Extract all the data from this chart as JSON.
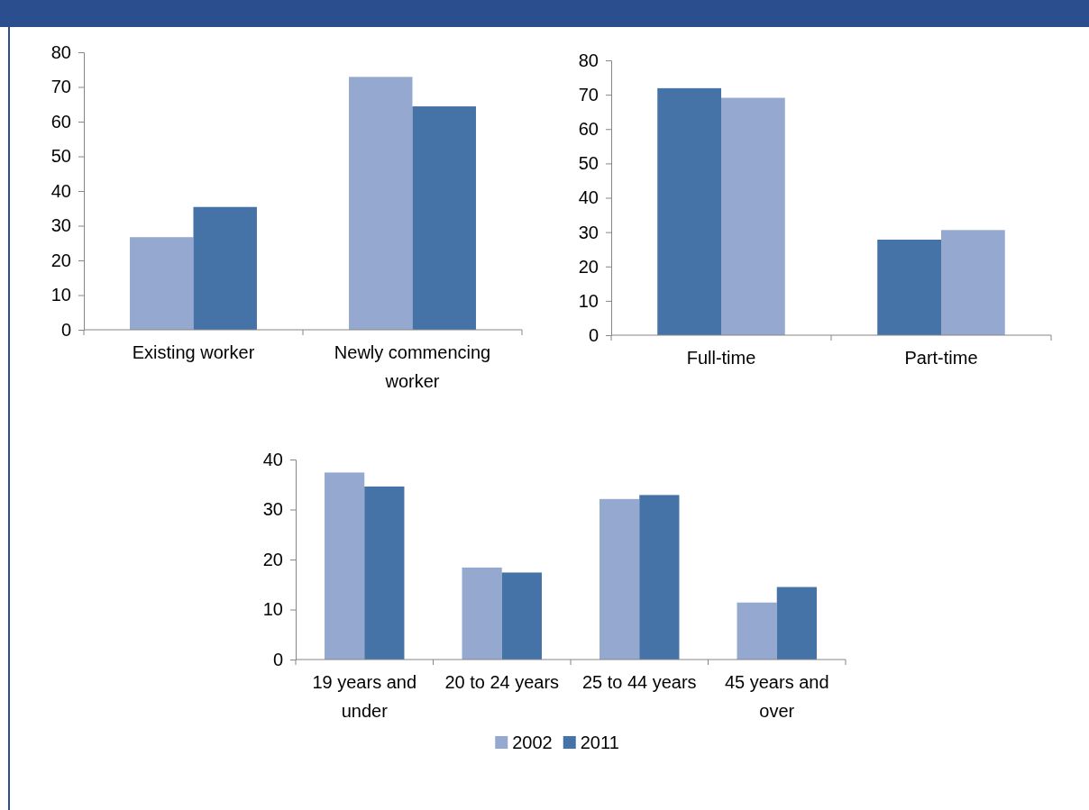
{
  "chart_data": [
    {
      "type": "bar",
      "categories": [
        "Existing worker",
        "Newly commencing worker"
      ],
      "series": [
        {
          "color": "#95a9d0",
          "values": [
            26.7,
            72.9
          ]
        },
        {
          "color": "#4573a7",
          "values": [
            35.4,
            64.4
          ]
        }
      ],
      "ylim": [
        0,
        80
      ],
      "yticks": [
        0,
        10,
        20,
        30,
        40,
        50,
        60,
        70,
        80
      ],
      "grid": false,
      "legend": false
    },
    {
      "type": "bar",
      "categories": [
        "Full-time",
        "Part-time"
      ],
      "series": [
        {
          "color": "#4573a7",
          "values": [
            71.9,
            27.8
          ]
        },
        {
          "color": "#95a9d0",
          "values": [
            69.1,
            30.6
          ]
        }
      ],
      "ylim": [
        0,
        80
      ],
      "yticks": [
        0,
        10,
        20,
        30,
        40,
        50,
        60,
        70,
        80
      ],
      "grid": false,
      "legend": false
    },
    {
      "type": "bar",
      "categories": [
        "19 years and under",
        "20 to 24 years",
        "25 to 44 years",
        "45 years and over"
      ],
      "series": [
        {
          "name": "2002",
          "color": "#95a9d0",
          "values": [
            37.4,
            18.4,
            32.1,
            11.4
          ]
        },
        {
          "name": "2011",
          "color": "#4573a7",
          "values": [
            34.6,
            17.4,
            32.9,
            14.5
          ]
        }
      ],
      "ylim": [
        0,
        40
      ],
      "yticks": [
        0,
        10,
        20,
        30,
        40
      ],
      "grid": false,
      "legend": "bottom"
    }
  ]
}
